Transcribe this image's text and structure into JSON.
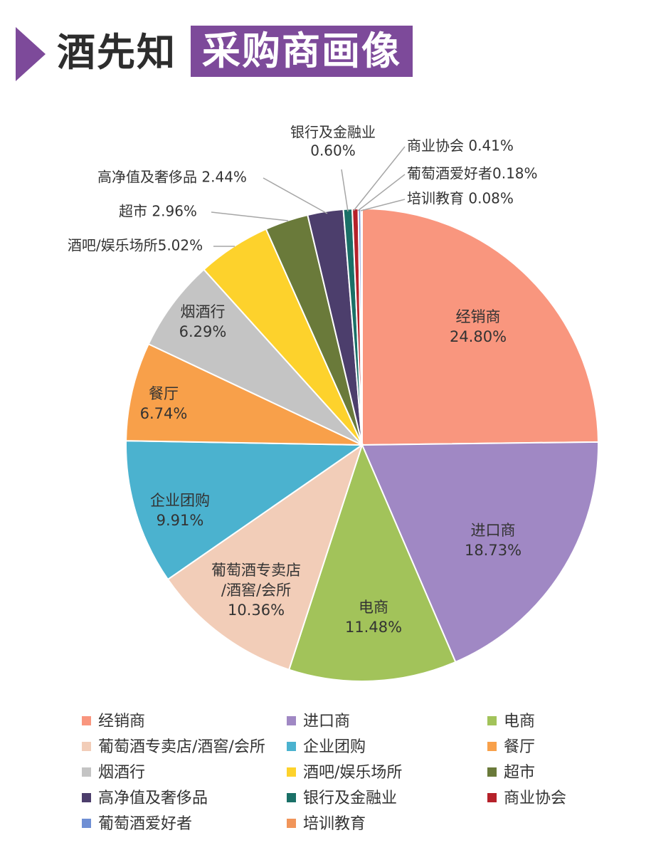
{
  "header": {
    "title_main": "酒先知",
    "title_sub": "采购商画像",
    "accent_color": "#7d4a9a"
  },
  "chart_data": {
    "type": "pie",
    "categories": [
      "经销商",
      "进口商",
      "电商",
      "葡萄酒专卖店/酒窖/会所",
      "企业团购",
      "餐厅",
      "烟酒行",
      "酒吧/娱乐场所",
      "超市",
      "高净值及奢侈品",
      "银行及金融业",
      "商业协会",
      "葡萄酒爱好者",
      "培训教育"
    ],
    "values": [
      24.8,
      18.73,
      11.48,
      10.36,
      9.91,
      6.74,
      6.29,
      5.02,
      2.96,
      2.44,
      0.6,
      0.41,
      0.18,
      0.08
    ],
    "colors": [
      "#f9967e",
      "#a088c4",
      "#a2c35a",
      "#f2cdb8",
      "#4bb2cf",
      "#f8a04a",
      "#c4c4c4",
      "#fdd22c",
      "#6a7a3a",
      "#4c3e6c",
      "#1a7067",
      "#b5212a",
      "#6f8fd4",
      "#f1955a"
    ],
    "slice_label_lines": [
      [
        "经销商",
        "24.80%"
      ],
      [
        "进口商",
        "18.73%"
      ],
      [
        "电商",
        "11.48%"
      ],
      [
        "葡萄酒专卖店",
        "/酒窖/会所",
        "10.36%"
      ],
      [
        "企业团购",
        "9.91%"
      ],
      [
        "餐厅",
        "6.74%"
      ],
      [
        "烟酒行",
        "6.29%"
      ],
      [
        "酒吧/娱乐场所5.02%"
      ],
      [
        "超市 2.96%"
      ],
      [
        "高净值及奢侈品 2.44%"
      ],
      [
        "银行及金融业",
        "0.60%"
      ],
      [
        "商业协会 0.41%"
      ],
      [
        "葡萄酒爱好者0.18%"
      ],
      [
        "培训教育  0.08%"
      ]
    ],
    "legend_position": "bottom"
  }
}
